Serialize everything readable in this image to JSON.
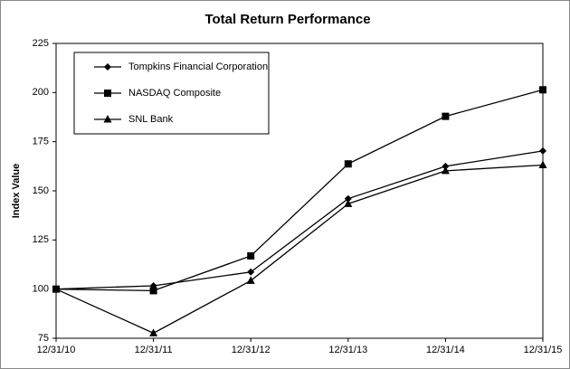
{
  "chart_data": {
    "type": "line",
    "title": "Total Return Performance",
    "y_label": "Index Value",
    "categories": [
      "12/31/10",
      "12/31/11",
      "12/31/12",
      "12/31/13",
      "12/31/14",
      "12/31/15"
    ],
    "series": [
      {
        "name": "Tompkins Financial Corporation",
        "color": "#000000",
        "marker": "diamond",
        "values": [
          100,
          101.7,
          108.7,
          146,
          162.5,
          170.3
        ]
      },
      {
        "name": "NASDAQ Composite",
        "color": "#000000",
        "marker": "square",
        "values": [
          100,
          99.2,
          116.9,
          163.7,
          187.9,
          201.4
        ]
      },
      {
        "name": "SNL Bank",
        "color": "#000000",
        "marker": "triangle",
        "values": [
          100,
          77.6,
          104.3,
          143.4,
          160.2,
          163.1
        ]
      }
    ],
    "ylim": [
      75,
      225
    ],
    "yticks": [
      75,
      100,
      125,
      150,
      175,
      200,
      225
    ],
    "grid": false,
    "legend": "upper left"
  }
}
